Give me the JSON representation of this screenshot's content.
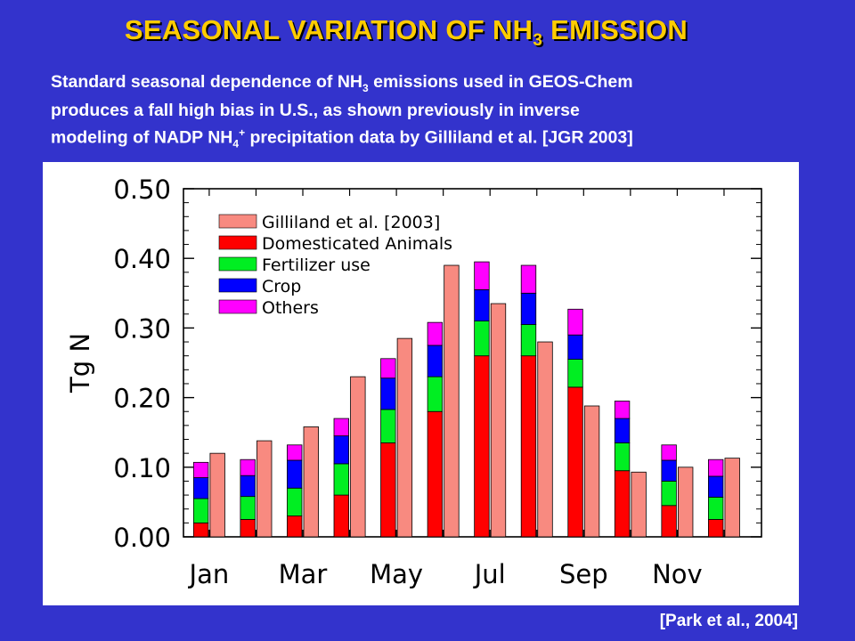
{
  "title": {
    "pre": "SEASONAL VARIATION OF NH",
    "sub": "3",
    "post": " EMISSION"
  },
  "subtitle": {
    "line1_pre": "Standard seasonal dependence of NH",
    "line1_sub": "3",
    "line1_post": " emissions used in GEOS-Chem",
    "line2": "produces a fall high bias in U.S., as shown previously in  inverse",
    "line3_pre": "modeling of NADP NH",
    "line3_sub": "4",
    "line3_sup": "+",
    "line3_post": " precipitation data by Gilliland et al. [JGR 2003]"
  },
  "citation": "[Park et al., 2004]",
  "colors": {
    "background": "#3333cc",
    "title": "#ffcc00",
    "gilliland": "#f88a80",
    "animals": "#ff0000",
    "fertilizer": "#00ee22",
    "crop": "#0000ff",
    "others": "#ff00ff"
  },
  "chart_data": {
    "type": "bar",
    "ylabel": "Tg N",
    "ylim": [
      0,
      0.5
    ],
    "yticks": [
      "0.00",
      "0.10",
      "0.20",
      "0.30",
      "0.40",
      "0.50"
    ],
    "xtick_labels": [
      "Jan",
      "Mar",
      "May",
      "Jul",
      "Sep",
      "Nov"
    ],
    "categories": [
      "Jan",
      "Feb",
      "Mar",
      "Apr",
      "May",
      "Jun",
      "Jul",
      "Aug",
      "Sep",
      "Oct",
      "Nov",
      "Dec"
    ],
    "legend": [
      "Gilliland et al. [2003]",
      "Domesticated Animals",
      "Fertilizer use",
      "Crop",
      "Others"
    ],
    "legend_position": "top-left",
    "stacked_series": [
      {
        "name": "Domesticated Animals",
        "values": [
          0.02,
          0.025,
          0.03,
          0.06,
          0.135,
          0.18,
          0.26,
          0.26,
          0.215,
          0.095,
          0.045,
          0.025
        ]
      },
      {
        "name": "Fertilizer use",
        "values": [
          0.035,
          0.033,
          0.04,
          0.045,
          0.048,
          0.05,
          0.05,
          0.045,
          0.04,
          0.04,
          0.035,
          0.032
        ]
      },
      {
        "name": "Crop",
        "values": [
          0.03,
          0.03,
          0.04,
          0.04,
          0.045,
          0.045,
          0.045,
          0.045,
          0.035,
          0.035,
          0.03,
          0.03
        ]
      },
      {
        "name": "Others",
        "values": [
          0.022,
          0.023,
          0.022,
          0.025,
          0.028,
          0.033,
          0.04,
          0.04,
          0.037,
          0.025,
          0.022,
          0.024
        ]
      }
    ],
    "comparison_series": {
      "name": "Gilliland et al. [2003]",
      "values": [
        0.12,
        0.138,
        0.158,
        0.23,
        0.285,
        0.39,
        0.335,
        0.28,
        0.188,
        0.093,
        0.1,
        0.113
      ]
    }
  }
}
